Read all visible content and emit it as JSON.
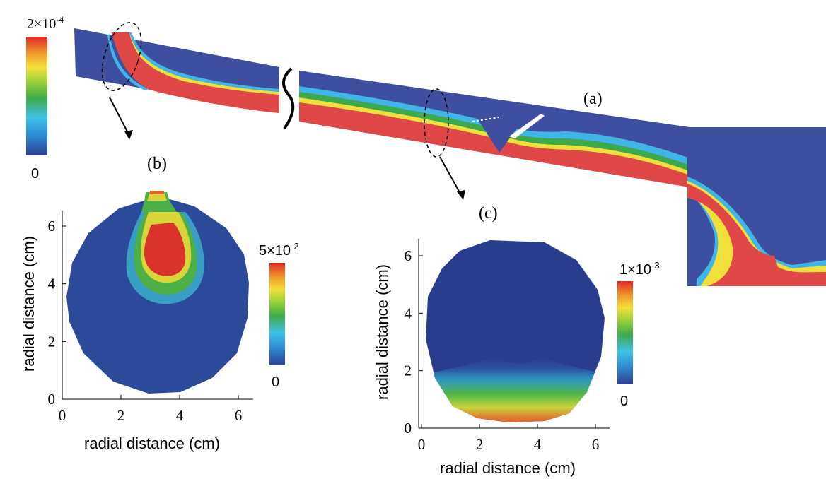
{
  "panels": {
    "a": "(a)",
    "b": "(b)",
    "c": "(c)"
  },
  "colorbars": {
    "main": {
      "max_base": "2×10",
      "max_exp": "-4",
      "min": "0"
    },
    "b": {
      "max_base": "5×10",
      "max_exp": "-2",
      "min": "0"
    },
    "c": {
      "max_base": "1×10",
      "max_exp": "-3",
      "min": "0"
    }
  },
  "plot_b": {
    "xlabel": "radial distance (cm)",
    "ylabel": "radial distance (cm)",
    "xticks": [
      "0",
      "2",
      "4",
      "6"
    ],
    "yticks": [
      "0",
      "2",
      "4",
      "6"
    ]
  },
  "plot_c": {
    "xlabel": "radial distance (cm)",
    "ylabel": "radial distance (cm)",
    "xticks": [
      "0",
      "2",
      "4",
      "6"
    ],
    "yticks": [
      "0",
      "2",
      "4",
      "6"
    ]
  },
  "colors": {
    "blue_bg": "#3d4f9e",
    "dark_blue": "#2a3f8f",
    "red": "#e04848",
    "green": "#4caf50",
    "yellow": "#f2e03a",
    "cyan": "#3fb6e6"
  }
}
